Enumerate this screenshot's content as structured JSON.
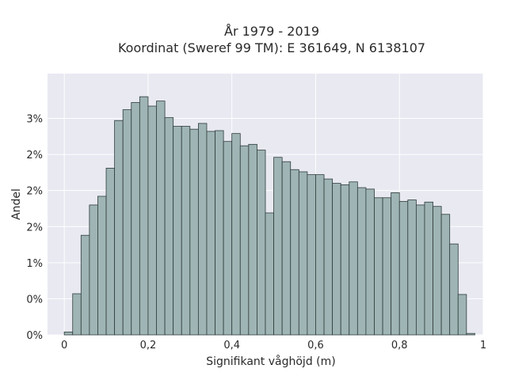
{
  "chart_data": {
    "type": "bar",
    "title_line1": "År 1979 - 2019",
    "title_line2": "Koordinat (Sweref 99 TM): E 361649, N 6138107",
    "xlabel": "Signifikant våghöjd (m)",
    "ylabel": "Andel",
    "xlim": [
      -0.04,
      1.0
    ],
    "ylim": [
      0,
      0.0362
    ],
    "x_ticks": [
      {
        "value": 0,
        "label": "0"
      },
      {
        "value": 0.2,
        "label": "0,2"
      },
      {
        "value": 0.4,
        "label": "0,4"
      },
      {
        "value": 0.6,
        "label": "0,6"
      },
      {
        "value": 0.8,
        "label": "0,8"
      },
      {
        "value": 1.0,
        "label": "1"
      }
    ],
    "y_ticks": [
      {
        "value": 0,
        "label": "0%"
      },
      {
        "value": 0.005,
        "label": "0%"
      },
      {
        "value": 0.01,
        "label": "1%"
      },
      {
        "value": 0.015,
        "label": "2%"
      },
      {
        "value": 0.02,
        "label": "2%"
      },
      {
        "value": 0.025,
        "label": "2%"
      },
      {
        "value": 0.03,
        "label": "3%"
      }
    ],
    "grid": true,
    "bin_width": 0.02,
    "bin_starts": [
      0.0,
      0.02,
      0.04,
      0.06,
      0.08,
      0.1,
      0.12,
      0.14,
      0.16,
      0.18,
      0.2,
      0.22,
      0.24,
      0.26,
      0.28,
      0.3,
      0.32,
      0.34,
      0.36,
      0.38,
      0.4,
      0.42,
      0.44,
      0.46,
      0.48,
      0.5,
      0.52,
      0.54,
      0.56,
      0.58,
      0.6,
      0.62,
      0.64,
      0.66,
      0.68,
      0.7,
      0.72,
      0.74,
      0.76,
      0.78,
      0.8,
      0.82,
      0.84,
      0.86,
      0.88,
      0.9,
      0.92,
      0.94,
      0.96
    ],
    "values": [
      0.0004,
      0.0057,
      0.0138,
      0.018,
      0.0192,
      0.0231,
      0.0297,
      0.0312,
      0.0322,
      0.033,
      0.0317,
      0.0324,
      0.0301,
      0.0289,
      0.0289,
      0.0285,
      0.0293,
      0.0282,
      0.0283,
      0.0268,
      0.0279,
      0.0262,
      0.0264,
      0.0256,
      0.0169,
      0.0246,
      0.024,
      0.0229,
      0.0226,
      0.0222,
      0.0222,
      0.0216,
      0.021,
      0.0208,
      0.0212,
      0.0204,
      0.0202,
      0.019,
      0.019,
      0.0197,
      0.0185,
      0.0187,
      0.018,
      0.0184,
      0.0178,
      0.0167,
      0.0126,
      0.0056,
      0.0002
    ]
  }
}
